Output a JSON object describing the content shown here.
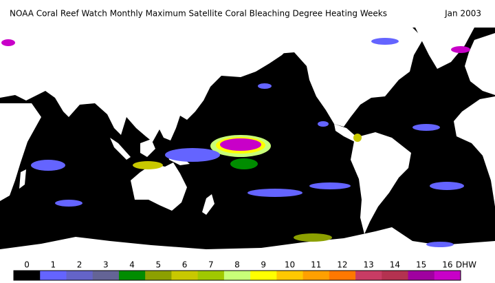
{
  "title": "NOAA Coral Reef Watch Monthly Maximum Satellite Coral Bleaching Degree Heating Weeks",
  "date": "Jan 2003",
  "legend": {
    "labels": [
      "0",
      "1",
      "2",
      "3",
      "4",
      "5",
      "6",
      "7",
      "8",
      "9",
      "10",
      "11",
      "12",
      "13",
      "14",
      "15",
      "16"
    ],
    "unit": "DHW",
    "colors": [
      "#000000",
      "#6464ff",
      "#6464c8",
      "#646496",
      "#008c00",
      "#8ca000",
      "#c8c800",
      "#a0c800",
      "#c8ff78",
      "#ffff00",
      "#ffc800",
      "#ffa000",
      "#ff7800",
      "#c83c64",
      "#b43250",
      "#a000a0",
      "#c800c8"
    ]
  }
}
